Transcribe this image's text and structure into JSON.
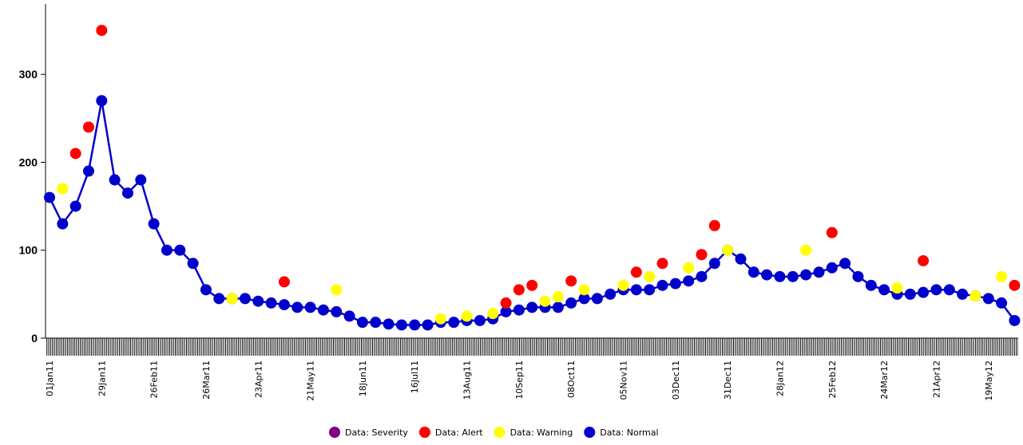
{
  "chart_data": {
    "type": "line",
    "categories": [
      "01Jan11",
      null,
      null,
      null,
      "29Jan11",
      null,
      null,
      null,
      "26Feb11",
      null,
      null,
      null,
      "26Mar11",
      null,
      null,
      null,
      "23Apr11",
      null,
      null,
      null,
      "21May11",
      null,
      null,
      null,
      "18Jun11",
      null,
      null,
      null,
      "16Jul11",
      null,
      null,
      null,
      "13Aug11",
      null,
      null,
      null,
      "10Sep11",
      null,
      null,
      null,
      "08Oct11",
      null,
      null,
      null,
      "05Nov11",
      null,
      null,
      null,
      "03Dec11",
      null,
      null,
      null,
      "31Dec11",
      null,
      null,
      null,
      "28Jan12",
      null,
      null,
      null,
      "25Feb12",
      null,
      null,
      null,
      "24Mar12",
      null,
      null,
      null,
      "21Apr12",
      null,
      null,
      null,
      "19May12",
      null,
      null
    ],
    "series": [
      {
        "name": "Data: Severity",
        "color": "#800080",
        "values": [
          null,
          null,
          null,
          null,
          null,
          null,
          null,
          null,
          null,
          null,
          null,
          null,
          null,
          null,
          null,
          null,
          null,
          null,
          null,
          null,
          null,
          null,
          null,
          null,
          null,
          null,
          null,
          null,
          null,
          null,
          null,
          null,
          null,
          null,
          null,
          null,
          null,
          null,
          null,
          null,
          null,
          null,
          null,
          null,
          null,
          null,
          null,
          null,
          null,
          null,
          null,
          null,
          null,
          null,
          null,
          null,
          null,
          null,
          null,
          null,
          null,
          null,
          null,
          null,
          null,
          null,
          null,
          null,
          null,
          null,
          null,
          null,
          null,
          null,
          null
        ]
      },
      {
        "name": "Data: Alert",
        "color": "#ff0000",
        "values": [
          null,
          null,
          210,
          240,
          350,
          null,
          null,
          null,
          null,
          null,
          null,
          null,
          null,
          null,
          null,
          null,
          null,
          null,
          64,
          null,
          null,
          null,
          null,
          null,
          null,
          null,
          null,
          null,
          null,
          null,
          null,
          null,
          null,
          null,
          null,
          40,
          55,
          60,
          null,
          null,
          65,
          null,
          null,
          null,
          null,
          75,
          null,
          85,
          null,
          null,
          95,
          128,
          null,
          null,
          null,
          null,
          null,
          null,
          null,
          null,
          120,
          null,
          null,
          null,
          null,
          null,
          null,
          88,
          null,
          null,
          null,
          null,
          null,
          null,
          60
        ]
      },
      {
        "name": "Data: Warning",
        "color": "#ffff00",
        "values": [
          null,
          170,
          null,
          null,
          null,
          null,
          null,
          null,
          null,
          null,
          null,
          null,
          null,
          null,
          45,
          null,
          null,
          null,
          null,
          null,
          null,
          null,
          55,
          null,
          null,
          null,
          null,
          null,
          null,
          null,
          22,
          null,
          25,
          null,
          28,
          null,
          null,
          null,
          42,
          47,
          null,
          55,
          null,
          null,
          60,
          null,
          70,
          null,
          null,
          80,
          null,
          null,
          100,
          null,
          null,
          null,
          null,
          null,
          100,
          null,
          null,
          null,
          null,
          null,
          null,
          57,
          null,
          null,
          null,
          null,
          null,
          48,
          null,
          70,
          null
        ]
      },
      {
        "name": "Data: Normal",
        "color": "#0000cc",
        "values": [
          160,
          130,
          150,
          190,
          270,
          180,
          165,
          180,
          130,
          100,
          100,
          85,
          55,
          45,
          45,
          45,
          42,
          40,
          38,
          35,
          35,
          32,
          30,
          25,
          18,
          18,
          16,
          15,
          15,
          15,
          18,
          18,
          20,
          20,
          22,
          30,
          32,
          35,
          35,
          35,
          40,
          45,
          45,
          50,
          55,
          55,
          55,
          60,
          62,
          65,
          70,
          85,
          100,
          90,
          75,
          72,
          70,
          70,
          72,
          75,
          80,
          85,
          70,
          60,
          55,
          50,
          50,
          52,
          55,
          55,
          50,
          48,
          45,
          40,
          20
        ]
      }
    ],
    "ylim": [
      0,
      380
    ],
    "yticks": [
      0,
      100,
      200,
      300
    ]
  }
}
